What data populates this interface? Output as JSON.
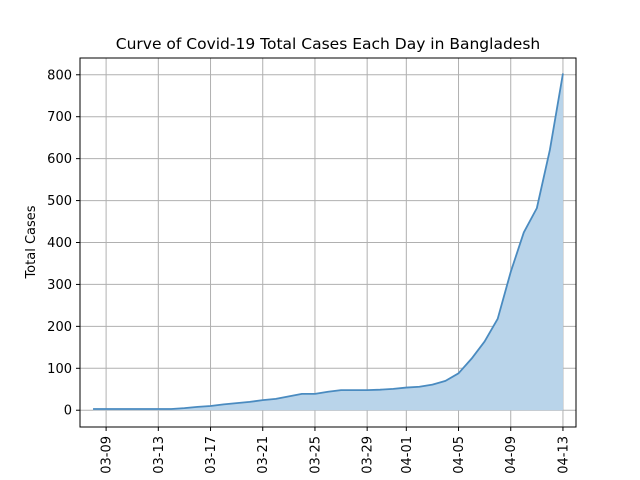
{
  "chart_data": {
    "type": "area",
    "title": "Curve of Covid-19 Total Cases Each Day in Bangladesh",
    "xlabel": "",
    "ylabel": "Total Cases",
    "grid": true,
    "legend": "none",
    "xlim": [
      "2020-03-07",
      "2020-04-14"
    ],
    "ylim": [
      -40,
      840
    ],
    "x_ticks": [
      "03-09",
      "03-13",
      "03-17",
      "03-21",
      "03-25",
      "03-29",
      "04-01",
      "04-05",
      "04-09",
      "04-13"
    ],
    "x_tick_dates": [
      "2020-03-09",
      "2020-03-13",
      "2020-03-17",
      "2020-03-21",
      "2020-03-25",
      "2020-03-29",
      "2020-04-01",
      "2020-04-05",
      "2020-04-09",
      "2020-04-13"
    ],
    "y_ticks": [
      0,
      100,
      200,
      300,
      400,
      500,
      600,
      700,
      800
    ],
    "line_color": "#4a8bc0",
    "fill_color": "#b9d4ea",
    "x": [
      "2020-03-08",
      "2020-03-09",
      "2020-03-10",
      "2020-03-11",
      "2020-03-12",
      "2020-03-13",
      "2020-03-14",
      "2020-03-15",
      "2020-03-16",
      "2020-03-17",
      "2020-03-18",
      "2020-03-19",
      "2020-03-20",
      "2020-03-21",
      "2020-03-22",
      "2020-03-23",
      "2020-03-24",
      "2020-03-25",
      "2020-03-26",
      "2020-03-27",
      "2020-03-28",
      "2020-03-29",
      "2020-03-30",
      "2020-03-31",
      "2020-04-01",
      "2020-04-02",
      "2020-04-03",
      "2020-04-04",
      "2020-04-05",
      "2020-04-06",
      "2020-04-07",
      "2020-04-08",
      "2020-04-09",
      "2020-04-10",
      "2020-04-11",
      "2020-04-12",
      "2020-04-13"
    ],
    "values": [
      3,
      3,
      3,
      3,
      3,
      3,
      3,
      5,
      8,
      10,
      14,
      17,
      20,
      24,
      27,
      33,
      39,
      39,
      44,
      48,
      48,
      48,
      49,
      51,
      54,
      56,
      61,
      70,
      88,
      123,
      164,
      218,
      330,
      424,
      482,
      621,
      803
    ]
  }
}
